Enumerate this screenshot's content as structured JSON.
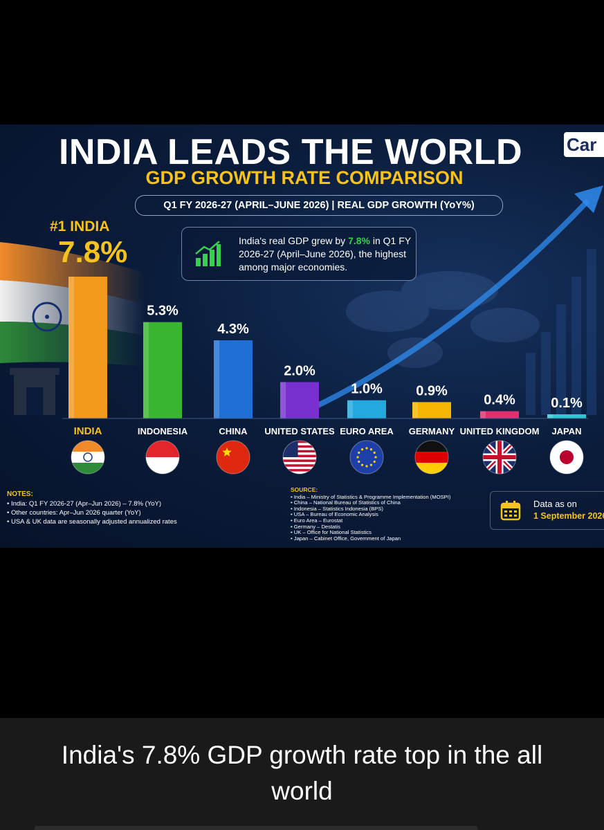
{
  "infographic": {
    "title": "INDIA LEADS THE WORLD",
    "subtitle": "GDP GROWTH RATE COMPARISON",
    "period": "Q1 FY 2026-27 (APRIL–JUNE 2026) | REAL GDP GROWTH (YoY%)",
    "brand": "Car",
    "rank_label": "#1 INDIA",
    "rank_value": "7.8%",
    "callout": {
      "prefix": "India's real GDP grew by ",
      "highlight": "7.8%",
      "suffix": " in Q1 FY 2026-27 (April–June 2026), the highest among major economies."
    },
    "notes": {
      "heading": "NOTES:",
      "items": [
        "• India: Q1 FY 2026-27 (Apr–Jun 2026) – 7.8% (YoY)",
        "• Other countries: Apr–Jun 2026 quarter (YoY)",
        "• USA & UK data are seasonally adjusted annualized rates"
      ]
    },
    "source": {
      "heading": "SOURCE:",
      "items": [
        "• India – Ministry of Statistics & Programme Implementation (MOSPI)",
        "• China – National Bureau of Statistics of China",
        "• Indonesia – Statistics Indonesia (BPS)",
        "• USA – Bureau of Economic Analysis",
        "• Euro Area – Eurostat",
        "• Germany – Destatis",
        "• UK – Office for National Statistics",
        "• Japan – Cabinet Office, Government of Japan"
      ]
    },
    "data_as_on": {
      "label": "Data as on",
      "date": "1 September 2026"
    },
    "icons": [
      "india-flag-icon",
      "growth-chart-icon",
      "calendar-icon",
      "world-map-icon",
      "trend-arrow-icon"
    ]
  },
  "chart_data": {
    "type": "bar",
    "categories": [
      "INDIA",
      "INDONESIA",
      "CHINA",
      "UNITED STATES",
      "EURO AREA",
      "GERMANY",
      "UNITED KINGDOM",
      "JAPAN"
    ],
    "values": [
      7.8,
      5.3,
      4.3,
      2.0,
      1.0,
      0.9,
      0.4,
      0.1
    ],
    "value_labels": [
      "",
      "5.3%",
      "4.3%",
      "2.0%",
      "1.0%",
      "0.9%",
      "0.4%",
      "0.1%"
    ],
    "colors": [
      "#f39a1c",
      "#39b52f",
      "#1f6fd6",
      "#7a2fd0",
      "#22a9dd",
      "#f6b500",
      "#e0306e",
      "#2fc7d2"
    ],
    "flags": [
      "india",
      "indonesia",
      "china",
      "usa",
      "eu",
      "germany",
      "uk",
      "japan"
    ],
    "highlight_category_color": "#f6c21c",
    "ylim": [
      0,
      7.8
    ],
    "grid": false,
    "legend": "none"
  },
  "caption": "India's 7.8% GDP growth rate top in the all world"
}
